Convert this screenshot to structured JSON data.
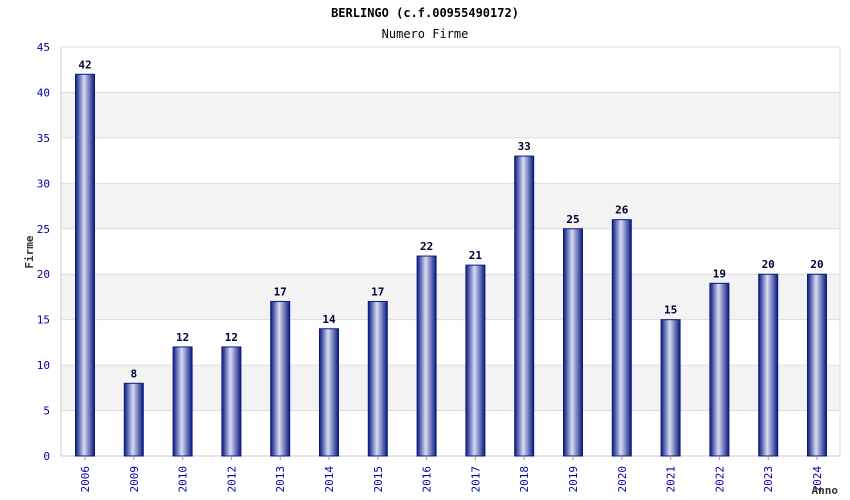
{
  "chart_data": {
    "type": "bar",
    "title": "BERLINGO (c.f.00955490172)",
    "subtitle": "Numero Firme",
    "xlabel": "Anno",
    "ylabel": "Firme",
    "ylim": [
      0,
      45
    ],
    "yticks": [
      0,
      5,
      10,
      15,
      20,
      25,
      30,
      35,
      40,
      45
    ],
    "grid": true,
    "categories": [
      "2006",
      "2009",
      "2010",
      "2012",
      "2013",
      "2014",
      "2015",
      "2016",
      "2017",
      "2018",
      "2019",
      "2020",
      "2021",
      "2022",
      "2023",
      "2024"
    ],
    "values": [
      42,
      8,
      12,
      12,
      17,
      14,
      17,
      22,
      21,
      33,
      25,
      26,
      15,
      19,
      20,
      20
    ],
    "colors": {
      "bar_dark": "#0a1a80",
      "bar_light": "#d8dcf4",
      "band": "#f3f3f3",
      "grid": "#dddddd",
      "tick": "#0000aa"
    }
  }
}
